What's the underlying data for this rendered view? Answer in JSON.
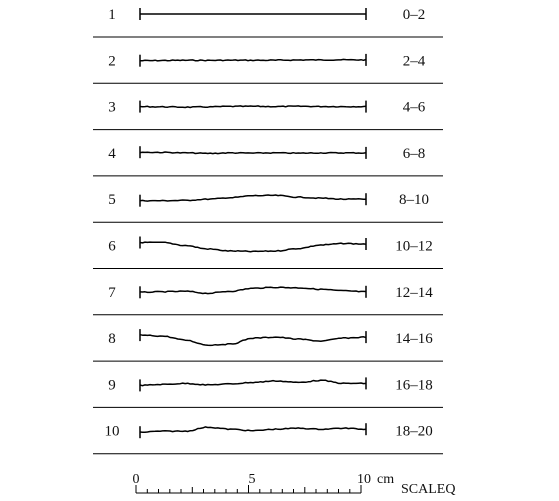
{
  "profiles": [
    {
      "number": "1",
      "range": "0–2",
      "shape": [
        0,
        0,
        0,
        0,
        0,
        0,
        0,
        0,
        0,
        0,
        0
      ]
    },
    {
      "number": "2",
      "range": "2–4",
      "shape": [
        0.4,
        0.2,
        0,
        0.1,
        -0.1,
        0,
        -0.1,
        -0.3,
        -0.4,
        -0.5,
        -0.4
      ]
    },
    {
      "number": "3",
      "range": "4–6",
      "shape": [
        0,
        0.2,
        0.6,
        0.3,
        -0.2,
        -0.3,
        0,
        -0.3,
        -0.1,
        0,
        0
      ]
    },
    {
      "number": "4",
      "range": "6–8",
      "shape": [
        -0.7,
        -0.5,
        0,
        0.5,
        0,
        0.2,
        0,
        0.3,
        0,
        0,
        0
      ]
    },
    {
      "number": "5",
      "range": "8–10",
      "shape": [
        1.5,
        1.5,
        1.2,
        0,
        -1.5,
        -3.5,
        -3.8,
        -2,
        -1,
        0,
        0
      ]
    },
    {
      "number": "6",
      "range": "10–12",
      "shape": [
        -3,
        -3,
        0,
        3.5,
        5.5,
        6,
        5.5,
        3,
        -0.5,
        -2,
        -1.5
      ]
    },
    {
      "number": "7",
      "range": "12–14",
      "shape": [
        0.5,
        0,
        -0.5,
        1.5,
        -0.5,
        -3.5,
        -4.5,
        -4,
        -2.5,
        -1,
        0
      ]
    },
    {
      "number": "8",
      "range": "14–16",
      "shape": [
        -3,
        -2,
        2,
        7,
        6,
        0,
        -1,
        1,
        3,
        0,
        -1
      ]
    },
    {
      "number": "9",
      "range": "16–18",
      "shape": [
        1,
        0,
        -1,
        0.5,
        -0.5,
        -2,
        -3.5,
        -2,
        -4,
        -1,
        -1
      ]
    },
    {
      "number": "10",
      "range": "18–20",
      "shape": [
        1.5,
        0.5,
        0.5,
        -3.5,
        -1.5,
        0,
        -1.5,
        -2.5,
        -1.5,
        -2.5,
        -1.5
      ]
    }
  ],
  "scale": {
    "ticks": [
      {
        "value": 0,
        "label": "0"
      },
      {
        "value": 5,
        "label": "5"
      },
      {
        "value": 10,
        "label": "10"
      }
    ],
    "unit": "cm",
    "caption": "SCALEQ",
    "minor_divisions": 20
  }
}
